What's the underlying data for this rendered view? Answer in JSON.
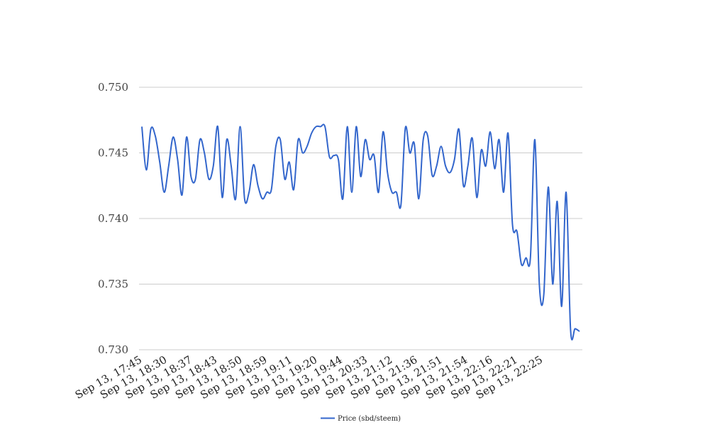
{
  "chart_data": {
    "type": "line",
    "title": "",
    "xlabel": "",
    "ylabel": "",
    "ylim": [
      0.73,
      0.75
    ],
    "y_ticks": [
      "0.730",
      "0.735",
      "0.740",
      "0.745",
      "0.750"
    ],
    "x_tick_labels": [
      "Sep 13, 17:45",
      "Sep 13, 18:30",
      "Sep 13, 18:37",
      "Sep 13, 18:43",
      "Sep 13, 18:50",
      "Sep 13, 18:59",
      "Sep 13, 19:11",
      "Sep 13, 19:20",
      "Sep 13, 19:44",
      "Sep 13, 20:33",
      "Sep 13, 21:12",
      "Sep 13, 21:36",
      "Sep 13, 21:51",
      "Sep 13, 21:54",
      "Sep 13, 22:16",
      "Sep 13, 22:21",
      "Sep 13, 22:25"
    ],
    "grid": true,
    "legend_position": "bottom",
    "series": [
      {
        "name": "Price (sbd/steem)",
        "color": "#3366cc",
        "values": [
          0.747,
          0.7437,
          0.7468,
          0.7463,
          0.7443,
          0.742,
          0.744,
          0.7462,
          0.7445,
          0.7418,
          0.7462,
          0.7432,
          0.743,
          0.746,
          0.745,
          0.743,
          0.744,
          0.747,
          0.7416,
          0.746,
          0.744,
          0.7415,
          0.747,
          0.7415,
          0.742,
          0.7441,
          0.7425,
          0.7415,
          0.742,
          0.7422,
          0.7455,
          0.746,
          0.743,
          0.7443,
          0.7422,
          0.746,
          0.745,
          0.7455,
          0.7465,
          0.747,
          0.747,
          0.747,
          0.7447,
          0.7448,
          0.7445,
          0.7415,
          0.747,
          0.742,
          0.747,
          0.7432,
          0.746,
          0.7445,
          0.7448,
          0.742,
          0.7466,
          0.7435,
          0.742,
          0.742,
          0.741,
          0.7469,
          0.745,
          0.7457,
          0.7415,
          0.746,
          0.7463,
          0.7433,
          0.744,
          0.7455,
          0.744,
          0.7435,
          0.7445,
          0.7468,
          0.7425,
          0.744,
          0.7461,
          0.7416,
          0.7452,
          0.744,
          0.7466,
          0.7438,
          0.746,
          0.742,
          0.7465,
          0.7395,
          0.739,
          0.7365,
          0.737,
          0.737,
          0.746,
          0.735,
          0.7342,
          0.7424,
          0.735,
          0.7413,
          0.7333,
          0.742,
          0.7315,
          0.7316,
          0.7314
        ]
      }
    ]
  }
}
